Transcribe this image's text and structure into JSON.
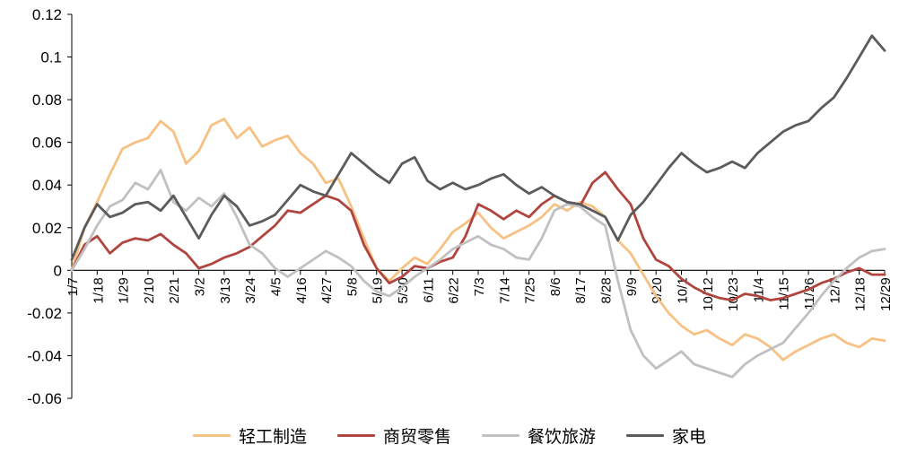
{
  "chart_data": {
    "type": "line",
    "title": "",
    "grid": false,
    "legend_position": "bottom",
    "axis_color": "#000000",
    "ylim": [
      -0.06,
      0.12
    ],
    "y_tick_values": [
      0.12,
      0.1,
      0.08,
      0.06,
      0.04,
      0.02,
      0,
      -0.02,
      -0.04,
      -0.06
    ],
    "y_tick_labels": [
      "0.12",
      "0.1",
      "0.08",
      "0.06",
      "0.04",
      "0.02",
      "0",
      "-0.02",
      "-0.04",
      "-0.06"
    ],
    "points_per_tick": 2,
    "x_tick_labels": [
      "1/7",
      "1/18",
      "1/29",
      "2/10",
      "2/21",
      "3/2",
      "3/13",
      "3/24",
      "4/5",
      "4/16",
      "4/27",
      "5/8",
      "5/19",
      "5/30",
      "6/11",
      "6/22",
      "7/3",
      "7/14",
      "7/25",
      "8/6",
      "8/17",
      "8/28",
      "9/9",
      "9/20",
      "10/1",
      "10/12",
      "10/23",
      "11/4",
      "11/15",
      "11/26",
      "12/7",
      "12/18",
      "12/29"
    ],
    "series": [
      {
        "name": "轻工制造",
        "color": "#F7C183",
        "values": [
          0,
          0.02,
          0.032,
          0.045,
          0.057,
          0.06,
          0.062,
          0.07,
          0.065,
          0.05,
          0.056,
          0.068,
          0.071,
          0.062,
          0.067,
          0.058,
          0.061,
          0.063,
          0.055,
          0.05,
          0.041,
          0.043,
          0.03,
          0.015,
          0.001,
          -0.005,
          0.001,
          0.006,
          0.003,
          0.01,
          0.018,
          0.022,
          0.027,
          0.02,
          0.015,
          0.018,
          0.021,
          0.025,
          0.031,
          0.028,
          0.032,
          0.03,
          0.025,
          0.014,
          0.008,
          -0.002,
          -0.012,
          -0.02,
          -0.026,
          -0.03,
          -0.028,
          -0.032,
          -0.035,
          -0.03,
          -0.032,
          -0.036,
          -0.042,
          -0.038,
          -0.035,
          -0.032,
          -0.03,
          -0.034,
          -0.036,
          -0.032,
          -0.033
        ]
      },
      {
        "name": "商贸零售",
        "color": "#B0453F",
        "values": [
          0,
          0.012,
          0.016,
          0.008,
          0.013,
          0.015,
          0.014,
          0.017,
          0.012,
          0.008,
          0.001,
          0.003,
          0.006,
          0.008,
          0.011,
          0.016,
          0.021,
          0.028,
          0.027,
          0.031,
          0.035,
          0.033,
          0.028,
          0.012,
          0.001,
          -0.006,
          -0.003,
          0.002,
          0.001,
          0.004,
          0.006,
          0.016,
          0.031,
          0.028,
          0.024,
          0.028,
          0.025,
          0.031,
          0.035,
          0.032,
          0.03,
          0.041,
          0.046,
          0.038,
          0.031,
          0.015,
          0.005,
          0.002,
          -0.004,
          -0.008,
          -0.011,
          -0.013,
          -0.014,
          -0.011,
          -0.012,
          -0.014,
          -0.013,
          -0.011,
          -0.009,
          -0.006,
          -0.004,
          -0.001,
          0.001,
          -0.002,
          -0.002
        ]
      },
      {
        "name": "餐饮旅游",
        "color": "#C1C0C0",
        "values": [
          0,
          0.01,
          0.021,
          0.03,
          0.033,
          0.041,
          0.038,
          0.047,
          0.032,
          0.028,
          0.034,
          0.03,
          0.036,
          0.025,
          0.012,
          0.008,
          0.001,
          -0.003,
          0.001,
          0.005,
          0.009,
          0.006,
          0.002,
          -0.005,
          -0.01,
          -0.012,
          -0.008,
          -0.003,
          0.001,
          0.005,
          0.01,
          0.013,
          0.016,
          0.012,
          0.01,
          0.006,
          0.005,
          0.015,
          0.028,
          0.031,
          0.03,
          0.025,
          0.021,
          -0.005,
          -0.028,
          -0.04,
          -0.046,
          -0.042,
          -0.038,
          -0.044,
          -0.046,
          -0.048,
          -0.05,
          -0.044,
          -0.04,
          -0.037,
          -0.034,
          -0.027,
          -0.02,
          -0.012,
          -0.005,
          0.001,
          0.006,
          0.009,
          0.01
        ]
      },
      {
        "name": "家电",
        "color": "#5B5B5B",
        "values": [
          0.005,
          0.02,
          0.031,
          0.025,
          0.027,
          0.031,
          0.032,
          0.028,
          0.035,
          0.025,
          0.015,
          0.026,
          0.035,
          0.03,
          0.021,
          0.023,
          0.026,
          0.033,
          0.04,
          0.037,
          0.035,
          0.045,
          0.055,
          0.05,
          0.045,
          0.041,
          0.05,
          0.053,
          0.042,
          0.038,
          0.041,
          0.038,
          0.04,
          0.043,
          0.045,
          0.04,
          0.036,
          0.039,
          0.035,
          0.032,
          0.031,
          0.028,
          0.025,
          0.014,
          0.026,
          0.032,
          0.04,
          0.048,
          0.055,
          0.05,
          0.046,
          0.048,
          0.051,
          0.048,
          0.055,
          0.06,
          0.065,
          0.068,
          0.07,
          0.076,
          0.081,
          0.09,
          0.1,
          0.11,
          0.103
        ]
      }
    ]
  }
}
